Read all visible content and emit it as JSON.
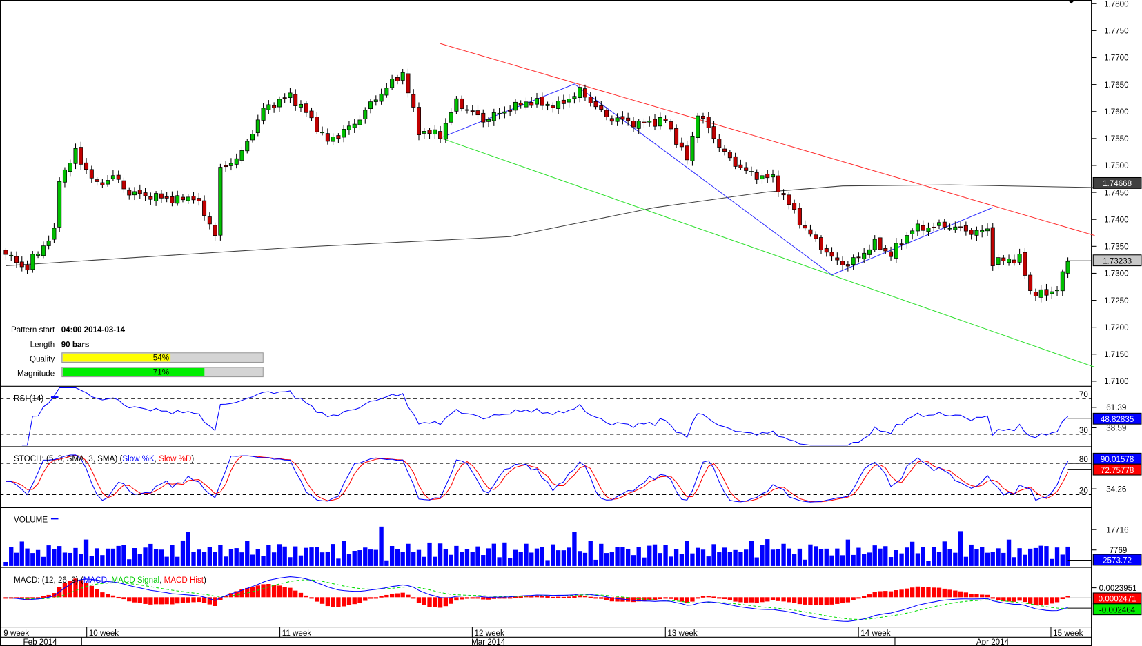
{
  "colors": {
    "up": "#00c000",
    "down": "#c00000",
    "trend_upper": "#ff3030",
    "trend_lower": "#30e030",
    "zigzag": "#3030ff",
    "ma": "#404040",
    "rsi": "#0000ff",
    "stoch_k": "#0000ff",
    "stoch_d": "#ff0000",
    "volume": "#0000ff",
    "macd": "#0000ff",
    "macd_signal": "#00dd00",
    "macd_hist": "#ff0000"
  },
  "pattern_info": {
    "start_label": "Pattern start",
    "start_value": "04:00 2014-03-14",
    "length_label": "Length",
    "length_value": "90 bars",
    "quality_label": "Quality",
    "quality_value": "54%",
    "quality_fraction": 0.54,
    "magnitude_label": "Magnitude",
    "magnitude_value": "71%",
    "magnitude_fraction": 0.71
  },
  "chart_data": {
    "type": "candlestick",
    "bars": 199,
    "bar_period": "4h",
    "price_ylim": [
      1.71,
      1.78
    ],
    "price_ticks": [
      "1.7800",
      "1.7750",
      "1.7700",
      "1.7650",
      "1.7600",
      "1.7550",
      "1.7500",
      "1.7450",
      "1.7400",
      "1.7350",
      "1.7300",
      "1.7250",
      "1.7200",
      "1.7150",
      "1.7100"
    ],
    "close_waypoints": [
      [
        0,
        1.7335
      ],
      [
        4,
        1.7308
      ],
      [
        5,
        1.7328
      ],
      [
        9,
        1.7375
      ],
      [
        10,
        1.7476
      ],
      [
        13,
        1.7523
      ],
      [
        17,
        1.7463
      ],
      [
        20,
        1.748
      ],
      [
        23,
        1.7449
      ],
      [
        27,
        1.7443
      ],
      [
        32,
        1.7436
      ],
      [
        35,
        1.7443
      ],
      [
        39,
        1.7375
      ],
      [
        40,
        1.749
      ],
      [
        44,
        1.7523
      ],
      [
        48,
        1.7604
      ],
      [
        53,
        1.763
      ],
      [
        56,
        1.7598
      ],
      [
        60,
        1.7544
      ],
      [
        65,
        1.7577
      ],
      [
        69,
        1.7625
      ],
      [
        74,
        1.7672
      ],
      [
        77,
        1.7564
      ],
      [
        81,
        1.7557
      ],
      [
        84,
        1.7618
      ],
      [
        89,
        1.7584
      ],
      [
        97,
        1.7618
      ],
      [
        103,
        1.7611
      ],
      [
        107,
        1.7638
      ],
      [
        112,
        1.759
      ],
      [
        118,
        1.7577
      ],
      [
        123,
        1.7584
      ],
      [
        127,
        1.751
      ],
      [
        129,
        1.7598
      ],
      [
        133,
        1.7537
      ],
      [
        135,
        1.751
      ],
      [
        139,
        1.7483
      ],
      [
        143,
        1.7476
      ],
      [
        145,
        1.7443
      ],
      [
        149,
        1.7382
      ],
      [
        154,
        1.7328
      ],
      [
        157,
        1.7315
      ],
      [
        162,
        1.7355
      ],
      [
        165,
        1.7335
      ],
      [
        169,
        1.7382
      ],
      [
        175,
        1.7389
      ],
      [
        181,
        1.7375
      ],
      [
        183,
        1.7382
      ],
      [
        184,
        1.7321
      ],
      [
        189,
        1.7328
      ],
      [
        191,
        1.7267
      ],
      [
        194,
        1.726
      ],
      [
        196,
        1.7274
      ],
      [
        198,
        1.7321
      ],
      [
        199,
        1.7325
      ]
    ],
    "moving_average": {
      "last": "1.74668",
      "points": [
        [
          0,
          1.7314
        ],
        [
          54,
          1.7348
        ],
        [
          94,
          1.7368
        ],
        [
          121,
          1.7422
        ],
        [
          142,
          1.7451
        ],
        [
          156,
          1.7462
        ],
        [
          176,
          1.7464
        ],
        [
          203,
          1.7459
        ]
      ]
    },
    "trend_upper": [
      [
        81,
        1.7726
      ],
      [
        203,
        1.737
      ]
    ],
    "trend_lower": [
      [
        81,
        1.7551
      ],
      [
        203,
        1.7126
      ]
    ],
    "zigzag": [
      [
        81,
        1.7551
      ],
      [
        106,
        1.7651
      ],
      [
        154,
        1.7297
      ],
      [
        184,
        1.7422
      ]
    ],
    "last_price": "1.73233",
    "x_week_labels": [
      "9 week",
      "10 week",
      "11 week",
      "12 week",
      "13 week",
      "14 week",
      "15 week"
    ],
    "x_month_labels": [
      "Feb 2014",
      "Mar 2014",
      "Apr 2014"
    ]
  },
  "rsi": {
    "label": "RSI (14)",
    "levels": [
      "70",
      "30"
    ],
    "ticks": [
      "61.39",
      "38.59"
    ],
    "value": "48.82835"
  },
  "stoch": {
    "label_prefix": "STOCH: (5, 3, SMA, 3, SMA) (",
    "k_label": "Slow %K",
    "sep": ", ",
    "d_label": "Slow %D",
    "suffix": ")",
    "levels": [
      "80",
      "20"
    ],
    "tick": "34.26",
    "k_value": "90.01578",
    "d_value": "72.75778"
  },
  "volume": {
    "label": "VOLUME",
    "ticks": [
      "17716",
      "7769"
    ],
    "value": "2573.72"
  },
  "macd": {
    "label_prefix": "MACD: (12, 26, 9) (",
    "macd_label": "MACD",
    "signal_label": "MACD Signal",
    "hist_label": "MACD Hist",
    "suffix": ")",
    "tick": "0.0023951",
    "hist_value": "0.0002471",
    "macd_value": "-0.002464"
  }
}
